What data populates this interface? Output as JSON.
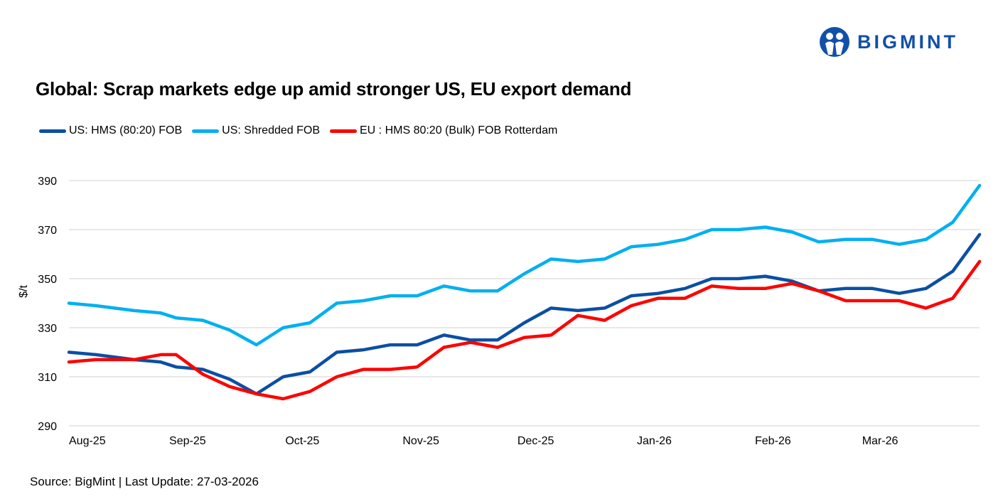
{
  "logo": {
    "text": "BIGMINT",
    "color": "#1150a8"
  },
  "source": "Source: BigMint | Last Update: 27-03-2026",
  "chart_data": {
    "type": "line",
    "title": "Global: Scrap markets edge up amid stronger US, EU export demand",
    "xlabel": "",
    "ylabel": "$/t",
    "ylim": [
      290,
      390
    ],
    "yticks": [
      290,
      310,
      330,
      350,
      370,
      390
    ],
    "xlim": [
      "2025-08-01",
      "2026-03-27"
    ],
    "xticks": [
      {
        "date": "2025-08-01",
        "label": "Aug-25"
      },
      {
        "date": "2025-09-01",
        "label": "Sep-25"
      },
      {
        "date": "2025-10-01",
        "label": "Oct-25"
      },
      {
        "date": "2025-11-01",
        "label": "Nov-25"
      },
      {
        "date": "2025-12-01",
        "label": "Dec-25"
      },
      {
        "date": "2026-01-01",
        "label": "Jan-26"
      },
      {
        "date": "2026-02-01",
        "label": "Feb-26"
      },
      {
        "date": "2026-03-01",
        "label": "Mar-26"
      }
    ],
    "grid": "horizontal",
    "legend": "top-left",
    "x": [
      "2025-08-01",
      "2025-08-08",
      "2025-08-18",
      "2025-08-25",
      "2025-08-29",
      "2025-09-05",
      "2025-09-12",
      "2025-09-19",
      "2025-09-26",
      "2025-10-03",
      "2025-10-10",
      "2025-10-17",
      "2025-10-24",
      "2025-10-31",
      "2025-11-07",
      "2025-11-14",
      "2025-11-21",
      "2025-11-28",
      "2025-12-05",
      "2025-12-12",
      "2025-12-19",
      "2025-12-26",
      "2026-01-02",
      "2026-01-09",
      "2026-01-16",
      "2026-01-23",
      "2026-01-30",
      "2026-02-06",
      "2026-02-13",
      "2026-02-20",
      "2026-02-27",
      "2026-03-06",
      "2026-03-13",
      "2026-03-20",
      "2026-03-27"
    ],
    "series": [
      {
        "name": "US: HMS (80:20) FOB",
        "color": "#0a4fa3",
        "values": [
          320,
          319,
          317,
          316,
          314,
          313,
          309,
          303,
          310,
          312,
          320,
          321,
          323,
          323,
          327,
          325,
          325,
          332,
          338,
          337,
          338,
          343,
          344,
          346,
          350,
          350,
          351,
          349,
          345,
          346,
          346,
          344,
          346,
          353,
          368
        ]
      },
      {
        "name": "US: Shredded FOB",
        "color": "#00b0f0",
        "values": [
          340,
          339,
          337,
          336,
          334,
          333,
          329,
          323,
          330,
          332,
          340,
          341,
          343,
          343,
          347,
          345,
          345,
          352,
          358,
          357,
          358,
          363,
          364,
          366,
          370,
          370,
          371,
          369,
          365,
          366,
          366,
          364,
          366,
          373,
          388
        ]
      },
      {
        "name": "EU : HMS 80:20 (Bulk) FOB Rotterdam",
        "color": "#ff0000",
        "values": [
          316,
          317,
          317,
          319,
          319,
          311,
          306,
          303,
          301,
          304,
          310,
          313,
          313,
          314,
          322,
          324,
          322,
          326,
          327,
          335,
          333,
          339,
          342,
          342,
          347,
          346,
          346,
          348,
          345,
          341,
          341,
          341,
          338,
          342,
          357
        ]
      }
    ]
  }
}
